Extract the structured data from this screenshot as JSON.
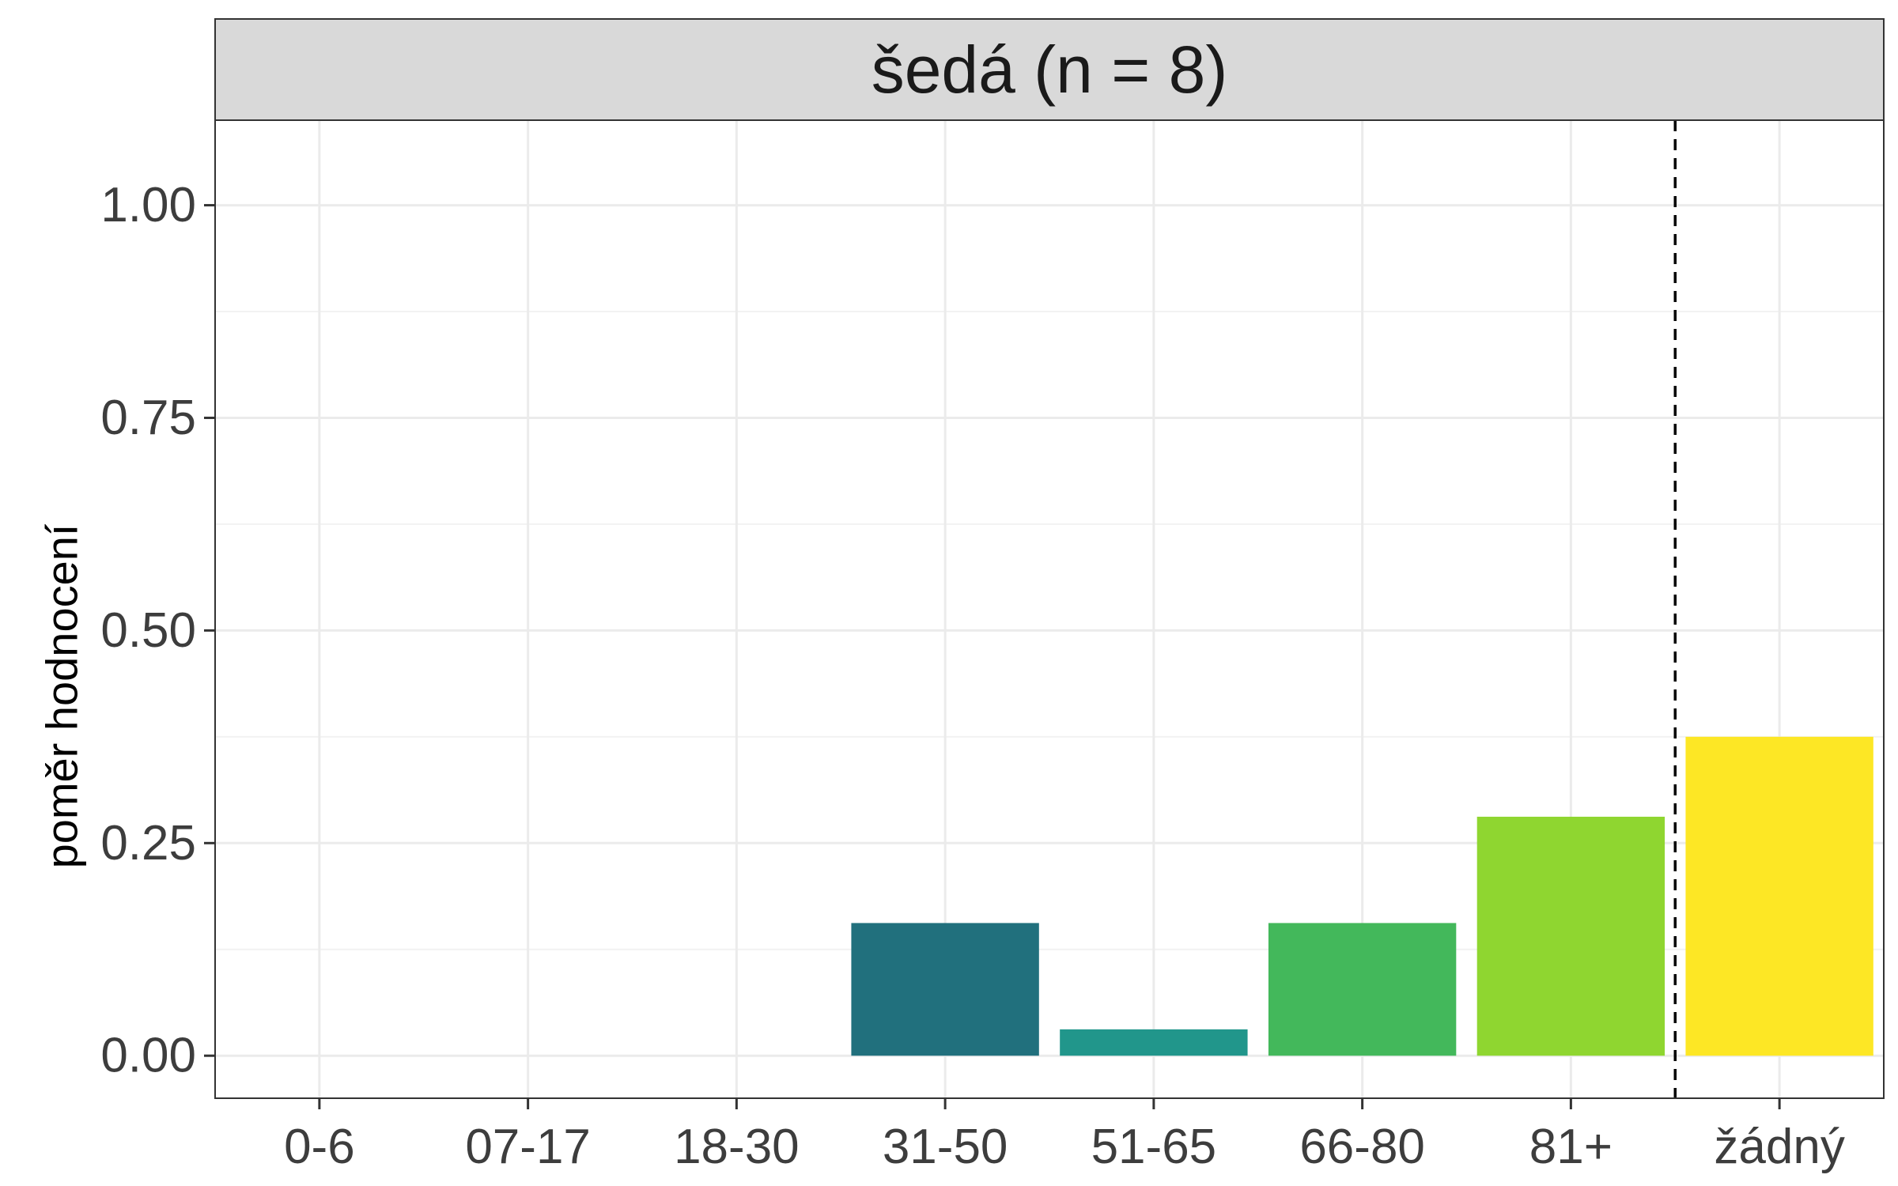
{
  "chart_data": {
    "type": "bar",
    "title": "šedá (n = 8)",
    "xlabel": "",
    "ylabel": "poměr hodnocení",
    "categories": [
      "0-6",
      "07-17",
      "18-30",
      "31-50",
      "51-65",
      "66-80",
      "81+",
      "žádný"
    ],
    "values": [
      0,
      0,
      0,
      0.156,
      0.031,
      0.156,
      0.281,
      0.375
    ],
    "colors": [
      "#440154",
      "#46337e",
      "#365c8d",
      "#21707d",
      "#21968b",
      "#43b85b",
      "#8fd630",
      "#fde725"
    ],
    "ylim": [
      -0.05,
      1.1
    ],
    "yticks": [
      0,
      0.25,
      0.5,
      0.75,
      1
    ],
    "ytick_labels": [
      "0.00",
      "0.25",
      "0.50",
      "0.75",
      "1.00"
    ],
    "reference_line": {
      "between": [
        "81+",
        "žádný"
      ],
      "style": "dashed"
    },
    "grid": true,
    "legend": "none"
  }
}
